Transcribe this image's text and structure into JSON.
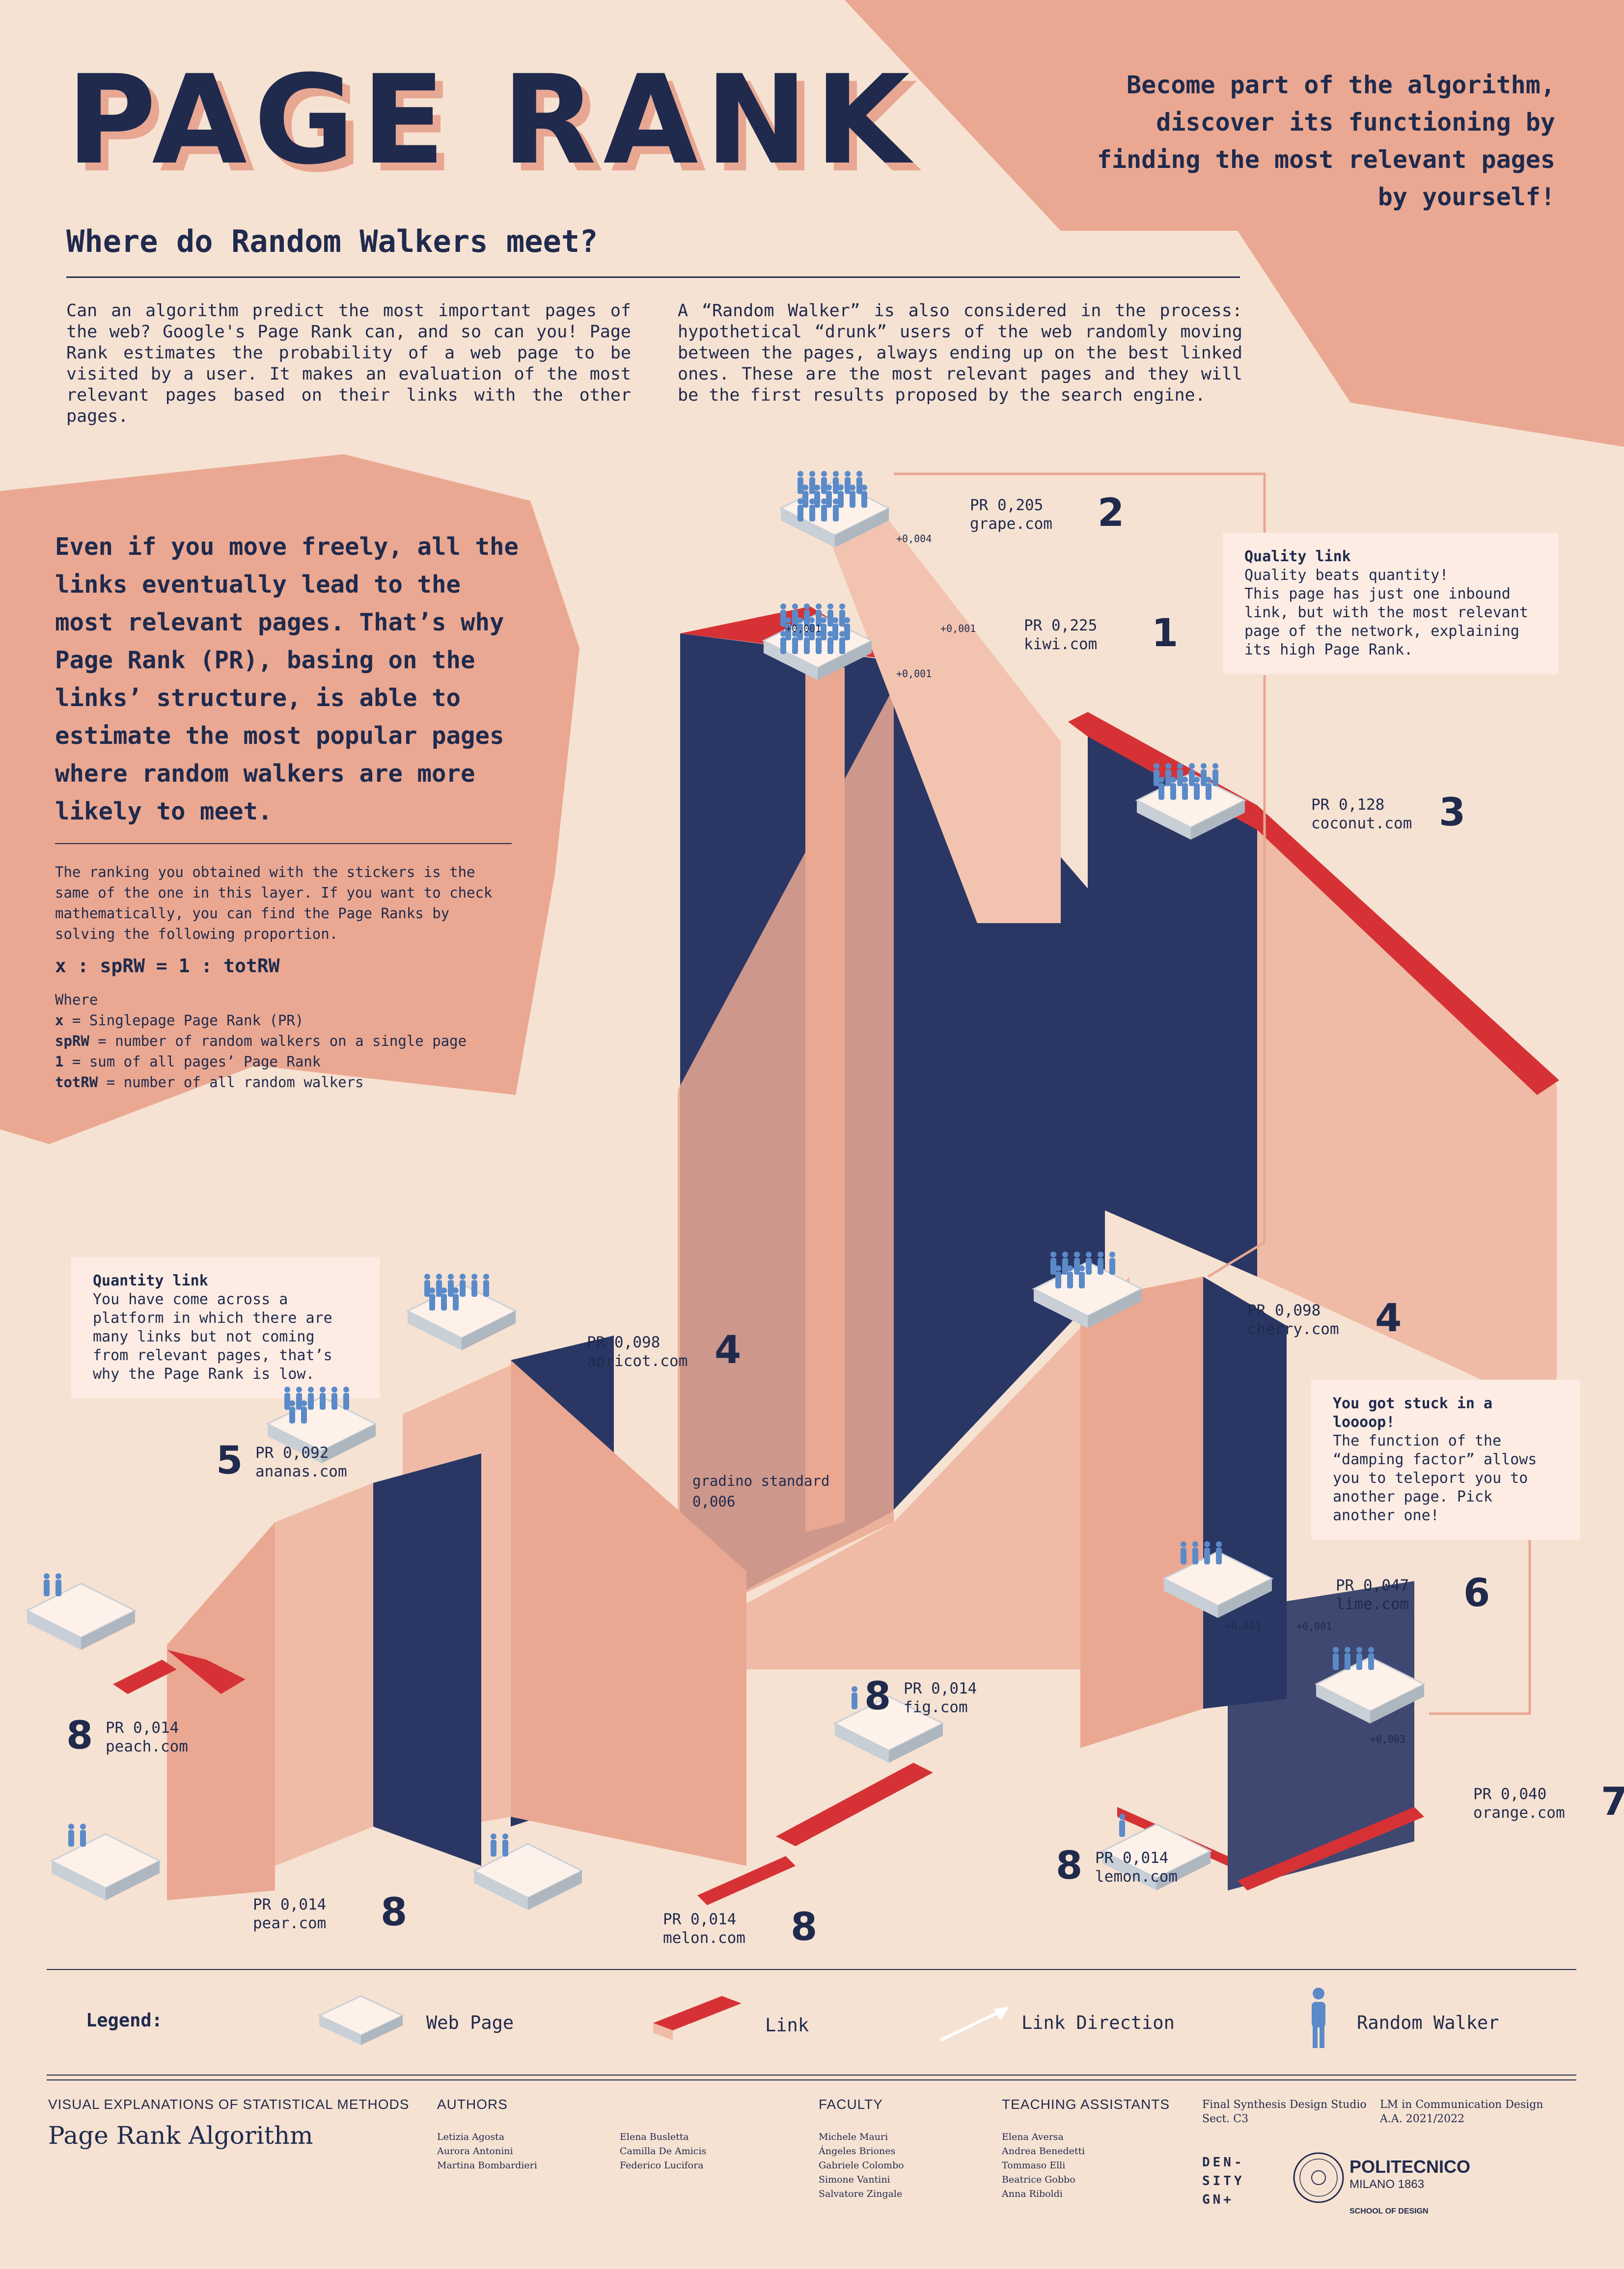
{
  "header": {
    "title": "PAGE RANK",
    "subtitle": "Where do Random Walkers meet?",
    "tagline": "Become part of the algorithm,\ndiscover its functioning by\nfinding the most relevant pages\nby yourself!"
  },
  "intro": {
    "left": "Can an algorithm predict the most important pages of the web? Google's Page Rank can, and so can you! Page Rank estimates the probability of a web page to be visited by a user. It makes an evaluation of the most relevant pages based on their links with the other pages.",
    "right": "A “Random Walker” is also considered in the process: hypothetical “drunk” users of the web randomly moving between the pages, always ending up on the best linked ones. These are the most relevant pages and they will be the first results proposed by the search engine."
  },
  "sidebar": {
    "quote": "Even if you move freely, all the links eventually lead to the most relevant pages. That’s why Page Rank (PR), basing on the links’ structure, is able to estimate the most popular pages where random walkers are more likely to meet.",
    "note": "The ranking you obtained with the stickers is the same of the one in this layer. If you want to check mathematically, you can find the Page Ranks by solving the following proportion.",
    "formula": "x : spRW = 1 : totRW",
    "where": "Where",
    "defs": [
      {
        "term": "x",
        "def": " = Singlepage Page Rank (PR)"
      },
      {
        "term": "spRW",
        "def": " = number of random walkers on a single page"
      },
      {
        "term": "1",
        "def": " = sum of all pages’ Page Rank"
      },
      {
        "term": "totRW",
        "def": " = number of all random walkers"
      }
    ]
  },
  "notes": {
    "quality": {
      "title": "Quality link",
      "body": "Quality beats quantity!\nThis page has just one inbound link, but with the most relevant page of the network, explaining its high Page Rank."
    },
    "quantity": {
      "title": "Quantity link",
      "body": "You have come across a platform in which there are many links but not coming from relevant pages, that’s why the Page Rank is low."
    },
    "loop": {
      "title": "You got stuck in a loooop!",
      "body": "The function of the “damping factor” allows you to teleport you to another page. Pick another one!"
    },
    "step": {
      "label": "gradino standard",
      "value": "0,006"
    }
  },
  "pages": [
    {
      "pr": "PR 0,225",
      "name": "kiwi.com",
      "rank": "1"
    },
    {
      "pr": "PR 0,205",
      "name": "grape.com",
      "rank": "2"
    },
    {
      "pr": "PR 0,128",
      "name": "coconut.com",
      "rank": "3"
    },
    {
      "pr": "PR 0,098",
      "name": "apricot.com",
      "rank": "4"
    },
    {
      "pr": "PR 0,098",
      "name": "cherry.com",
      "rank": "4"
    },
    {
      "pr": "PR 0,092",
      "name": "ananas.com",
      "rank": "5"
    },
    {
      "pr": "PR 0,047",
      "name": "lime.com",
      "rank": "6"
    },
    {
      "pr": "PR 0,040",
      "name": "orange.com",
      "rank": "7"
    },
    {
      "pr": "PR 0,014",
      "name": "peach.com",
      "rank": "8"
    },
    {
      "pr": "PR 0,014",
      "name": "fig.com",
      "rank": "8"
    },
    {
      "pr": "PR 0,014",
      "name": "pear.com",
      "rank": "8"
    },
    {
      "pr": "PR 0,014",
      "name": "melon.com",
      "rank": "8"
    },
    {
      "pr": "PR 0,014",
      "name": "lemon.com",
      "rank": "8"
    }
  ],
  "increments": [
    "+0,004",
    "+0,001",
    "+0,001",
    "+0,001",
    "+0,003",
    "+0,001",
    "+0,003"
  ],
  "legend": {
    "title": "Legend:",
    "items": [
      "Web Page",
      "Link",
      "Link Direction",
      "Random Walker"
    ]
  },
  "footer": {
    "course_head": "VISUAL EXPLANATIONS OF STATISTICAL METHODS",
    "course_title": "Page Rank Algorithm",
    "authors_head": "AUTHORS",
    "authors": [
      "Letizia Agosta",
      "Aurora Antonini",
      "Martina Bombardieri",
      "Elena Busletta",
      "Camilla De Amicis",
      "Federico Lucifora"
    ],
    "faculty_head": "FACULTY",
    "faculty": [
      "Michele Mauri",
      "Ángeles Briones",
      "Gabriele Colombo",
      "Simone Vantini",
      "Salvatore Zingale"
    ],
    "ta_head": "TEACHING ASSISTANTS",
    "tas": [
      "Elena Aversa",
      "Andrea Benedetti",
      "Tommaso Elli",
      "Beatrice Gobbo",
      "Anna Riboldi"
    ],
    "studio": [
      "Final Synthesis Design Studio",
      "Sect. C3"
    ],
    "degree": [
      "LM in Communication Design",
      "A.A. 2021/2022"
    ],
    "logo_density": "DEN-\nSITY\nGN+",
    "logo_poli": "POLITECNICO",
    "logo_milano": "MILANO 1863",
    "logo_school": "SCHOOL OF DESIGN"
  },
  "colors": {
    "background": "#f6e2d2",
    "salmon": "#eaa892",
    "navy": "#1f2a4d",
    "red": "#d63236",
    "walker": "#5b8ac9"
  }
}
